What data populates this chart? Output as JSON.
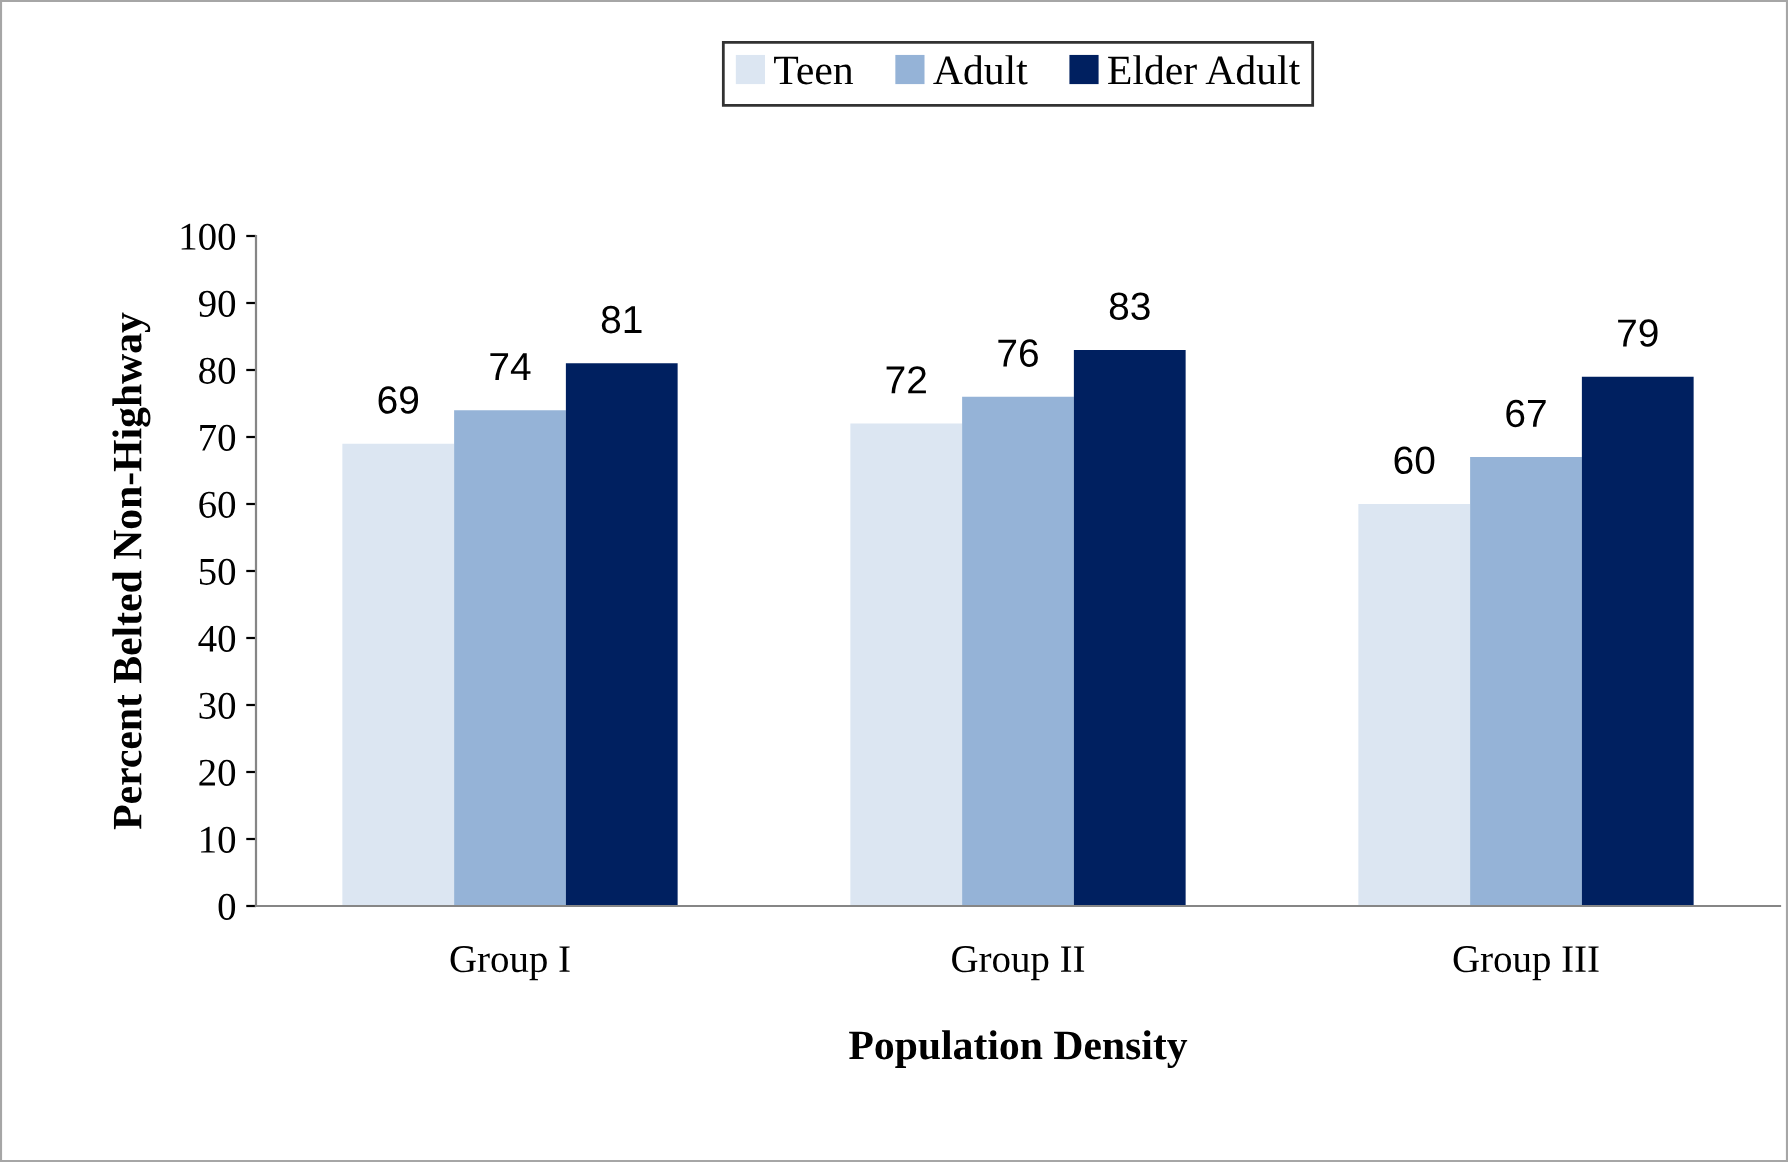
{
  "chart_data": {
    "type": "bar",
    "xlabel": "Population Density",
    "ylabel": "Percent Belted Non-Highway",
    "categories": [
      "Group I",
      "Group II",
      "Group III"
    ],
    "series": [
      {
        "name": "Teen",
        "color": "#dce6f2",
        "values": [
          69,
          72,
          60
        ]
      },
      {
        "name": "Adult",
        "color": "#95b3d7",
        "values": [
          74,
          76,
          67
        ]
      },
      {
        "name": "Elder Adult",
        "color": "#002060",
        "values": [
          81,
          83,
          79
        ]
      }
    ],
    "ylim": [
      0,
      100
    ],
    "yticks": [
      0,
      10,
      20,
      30,
      40,
      50,
      60,
      70,
      80,
      90,
      100
    ],
    "grid": false,
    "legend": "top",
    "data_labels": true
  }
}
